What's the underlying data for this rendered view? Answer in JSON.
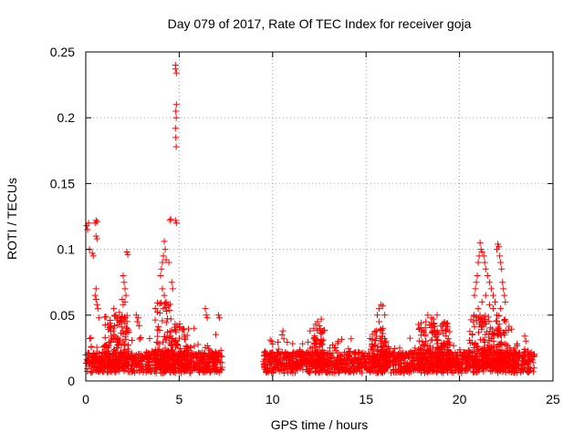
{
  "chart_data": {
    "type": "scatter",
    "title": "Day 079 of 2017, Rate Of TEC Index for receiver goja",
    "xlabel": "GPS time / hours",
    "ylabel": "ROTI / TECUs",
    "xlim": [
      0,
      25
    ],
    "ylim": [
      0,
      0.25
    ],
    "x_ticks": [
      0,
      5,
      10,
      15,
      20,
      25
    ],
    "x_tick_labels": [
      "0",
      "5",
      "10",
      "15",
      "20",
      "25"
    ],
    "y_ticks": [
      0,
      0.05,
      0.1,
      0.15,
      0.2,
      0.25
    ],
    "y_tick_labels": [
      "0",
      "0.05",
      "0.1",
      "0.15",
      "0.2",
      "0.25"
    ],
    "grid": true,
    "marker": "+",
    "marker_color": "#ff0000",
    "series": [
      {
        "name": "ROTI",
        "points": [
          [
            0.05,
            0.118
          ],
          [
            0.1,
            0.115
          ],
          [
            0.15,
            0.12
          ],
          [
            0.2,
            0.1
          ],
          [
            0.35,
            0.097
          ],
          [
            0.4,
            0.095
          ],
          [
            0.5,
            0.12
          ],
          [
            0.55,
            0.122
          ],
          [
            0.6,
            0.121
          ],
          [
            0.55,
            0.11
          ],
          [
            0.6,
            0.108
          ],
          [
            0.5,
            0.065
          ],
          [
            0.55,
            0.062
          ],
          [
            0.6,
            0.058
          ],
          [
            0.65,
            0.055
          ],
          [
            0.7,
            0.048
          ],
          [
            0.55,
            0.07
          ],
          [
            1.5,
            0.055
          ],
          [
            1.6,
            0.05
          ],
          [
            1.7,
            0.048
          ],
          [
            1.8,
            0.052
          ],
          [
            1.9,
            0.045
          ],
          [
            2.0,
            0.08
          ],
          [
            2.05,
            0.075
          ],
          [
            2.1,
            0.07
          ],
          [
            2.15,
            0.065
          ],
          [
            2.2,
            0.098
          ],
          [
            2.25,
            0.096
          ],
          [
            1.95,
            0.062
          ],
          [
            2.0,
            0.058
          ],
          [
            2.1,
            0.06
          ],
          [
            2.7,
            0.05
          ],
          [
            2.75,
            0.045
          ],
          [
            2.8,
            0.048
          ],
          [
            2.85,
            0.042
          ],
          [
            4.0,
            0.08
          ],
          [
            4.05,
            0.085
          ],
          [
            4.1,
            0.09
          ],
          [
            4.15,
            0.095
          ],
          [
            4.2,
            0.106
          ],
          [
            4.25,
            0.1
          ],
          [
            4.3,
            0.092
          ],
          [
            4.1,
            0.07
          ],
          [
            4.2,
            0.065
          ],
          [
            4.3,
            0.06
          ],
          [
            4.15,
            0.055
          ],
          [
            4.4,
            0.058
          ],
          [
            4.5,
            0.122
          ],
          [
            4.55,
            0.123
          ],
          [
            4.45,
            0.09
          ],
          [
            4.6,
            0.075
          ],
          [
            4.65,
            0.07
          ],
          [
            4.8,
            0.24
          ],
          [
            4.8,
            0.237
          ],
          [
            4.85,
            0.234
          ],
          [
            4.85,
            0.21
          ],
          [
            4.82,
            0.205
          ],
          [
            4.84,
            0.2
          ],
          [
            4.8,
            0.192
          ],
          [
            4.82,
            0.185
          ],
          [
            4.84,
            0.178
          ],
          [
            4.8,
            0.122
          ],
          [
            4.85,
            0.12
          ],
          [
            6.4,
            0.055
          ],
          [
            6.45,
            0.05
          ],
          [
            6.5,
            0.048
          ],
          [
            7.1,
            0.05
          ],
          [
            7.15,
            0.048
          ],
          [
            5.8,
            0.04
          ],
          [
            9.95,
            0.03
          ],
          [
            10.0,
            0.028
          ],
          [
            10.5,
            0.035
          ],
          [
            10.55,
            0.038
          ],
          [
            10.6,
            0.032
          ],
          [
            12.0,
            0.038
          ],
          [
            12.2,
            0.04
          ],
          [
            12.3,
            0.043
          ],
          [
            12.4,
            0.045
          ],
          [
            12.5,
            0.042
          ],
          [
            12.6,
            0.047
          ],
          [
            13.5,
            0.03
          ],
          [
            14.2,
            0.032
          ],
          [
            15.6,
            0.05
          ],
          [
            15.7,
            0.055
          ],
          [
            15.8,
            0.058
          ],
          [
            15.9,
            0.057
          ],
          [
            16.0,
            0.05
          ],
          [
            15.7,
            0.045
          ],
          [
            15.9,
            0.04
          ],
          [
            18.2,
            0.045
          ],
          [
            18.3,
            0.05
          ],
          [
            18.5,
            0.048
          ],
          [
            18.6,
            0.047
          ],
          [
            18.8,
            0.05
          ],
          [
            19.0,
            0.042
          ],
          [
            20.8,
            0.065
          ],
          [
            20.85,
            0.07
          ],
          [
            20.9,
            0.075
          ],
          [
            20.95,
            0.08
          ],
          [
            21.0,
            0.09
          ],
          [
            21.05,
            0.095
          ],
          [
            21.1,
            0.105
          ],
          [
            21.15,
            0.1
          ],
          [
            21.2,
            0.098
          ],
          [
            21.3,
            0.095
          ],
          [
            21.35,
            0.09
          ],
          [
            21.4,
            0.085
          ],
          [
            21.5,
            0.08
          ],
          [
            21.6,
            0.075
          ],
          [
            21.7,
            0.07
          ],
          [
            21.8,
            0.065
          ],
          [
            21.9,
            0.06
          ],
          [
            22.0,
            0.1
          ],
          [
            22.05,
            0.104
          ],
          [
            22.1,
            0.102
          ],
          [
            22.15,
            0.095
          ],
          [
            22.2,
            0.09
          ],
          [
            22.25,
            0.085
          ],
          [
            22.3,
            0.075
          ],
          [
            22.35,
            0.07
          ],
          [
            22.4,
            0.065
          ],
          [
            22.45,
            0.06
          ],
          [
            21.0,
            0.055
          ],
          [
            21.2,
            0.06
          ],
          [
            21.4,
            0.065
          ],
          [
            21.6,
            0.058
          ],
          [
            21.8,
            0.055
          ],
          [
            22.0,
            0.05
          ],
          [
            22.2,
            0.055
          ]
        ],
        "bands": [
          {
            "x": [
              0,
              7.3
            ],
            "base": [
              0.006,
              0.022
            ],
            "peak": 0.04
          },
          {
            "x": [
              9.5,
              24.0
            ],
            "base": [
              0.006,
              0.022
            ],
            "peak": 0.035
          }
        ],
        "bursts": [
          {
            "x": [
              1.0,
              2.3
            ],
            "top": 0.05
          },
          {
            "x": [
              3.7,
              4.6
            ],
            "top": 0.06
          },
          {
            "x": [
              4.6,
              5.5
            ],
            "top": 0.045
          },
          {
            "x": [
              12.2,
              12.8
            ],
            "top": 0.04
          },
          {
            "x": [
              15.3,
              16.2
            ],
            "top": 0.04
          },
          {
            "x": [
              17.8,
              19.5
            ],
            "top": 0.045
          },
          {
            "x": [
              20.5,
              22.8
            ],
            "top": 0.05
          }
        ]
      }
    ]
  }
}
